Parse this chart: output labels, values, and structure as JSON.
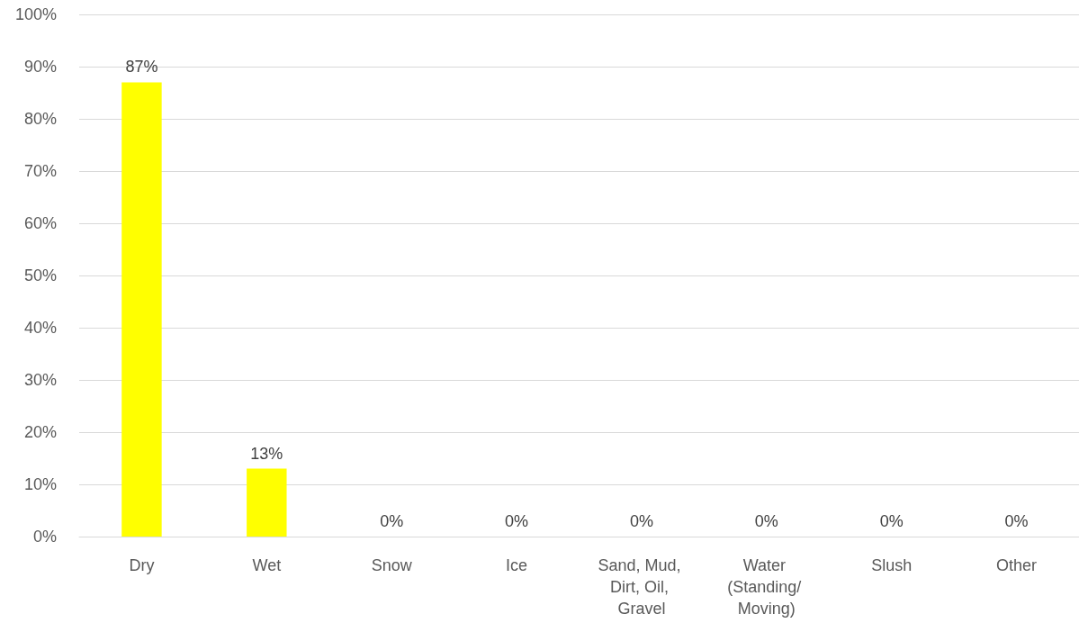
{
  "chart_data": {
    "type": "bar",
    "categories": [
      "Dry",
      "Wet",
      "Snow",
      "Ice",
      "Sand, Mud, Dirt, Oil, Gravel",
      "Water (Standing/ Moving)",
      "Slush",
      "Other"
    ],
    "values": [
      87,
      13,
      0,
      0,
      0,
      0,
      0,
      0
    ],
    "value_labels": [
      "87%",
      "13%",
      "0%",
      "0%",
      "0%",
      "0%",
      "0%",
      "0%"
    ],
    "color": "#ffff00",
    "ylim": [
      0,
      100
    ],
    "yticks": [
      {
        "value": 0,
        "label": "0%"
      },
      {
        "value": 10,
        "label": "10%"
      },
      {
        "value": 20,
        "label": "20%"
      },
      {
        "value": 30,
        "label": "30%"
      },
      {
        "value": 40,
        "label": "40%"
      },
      {
        "value": 50,
        "label": "50%"
      },
      {
        "value": 60,
        "label": "60%"
      },
      {
        "value": 70,
        "label": "70%"
      },
      {
        "value": 80,
        "label": "80%"
      },
      {
        "value": 90,
        "label": "90%"
      },
      {
        "value": 100,
        "label": "100%"
      }
    ],
    "grid": "y"
  }
}
